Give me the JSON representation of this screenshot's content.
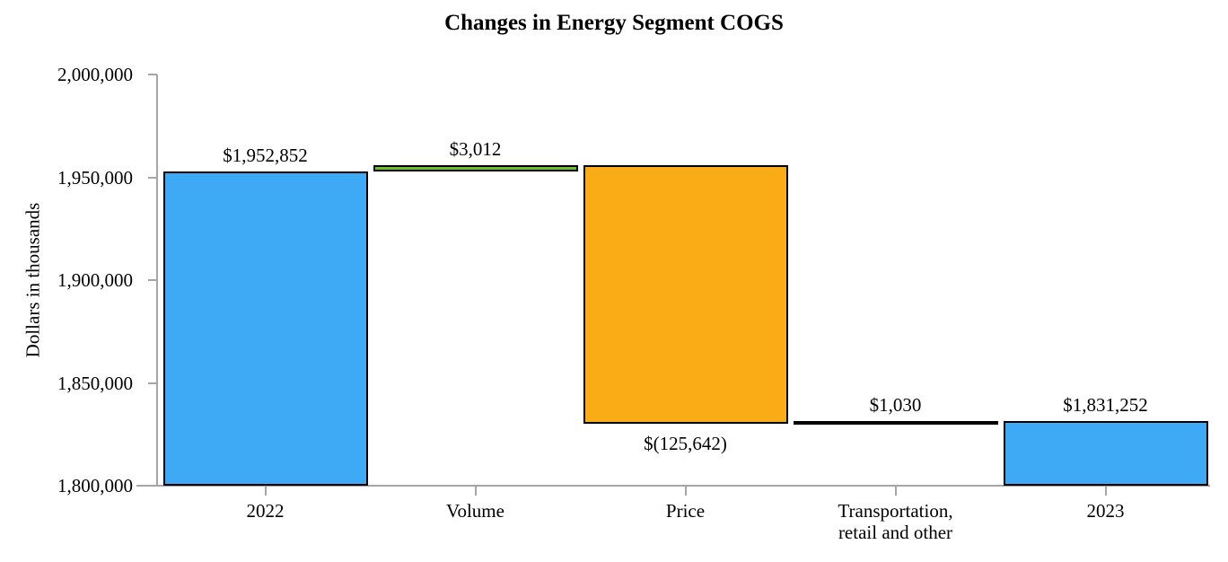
{
  "title": "Changes in Energy Segment COGS",
  "chart_data": {
    "type": "bar",
    "subtype": "waterfall",
    "title": "Changes in Energy Segment COGS",
    "xlabel": "",
    "ylabel": "Dollars in thousands",
    "ylim": [
      1800000,
      2000000
    ],
    "y_tick_interval": 50000,
    "y_tick_labels": [
      "2,000,000",
      "1,950,000",
      "1,900,000",
      "1,850,000",
      "1,800,000"
    ],
    "grid": false,
    "legend": false,
    "categories": [
      "2022",
      "Volume",
      "Price",
      "Transportation, retail and other",
      "2023"
    ],
    "bars": [
      {
        "category": "2022",
        "category_lines": [
          "2022"
        ],
        "kind": "total",
        "value": 1952852,
        "label": "$1,952,852",
        "label_position": "above",
        "color": "#3ea9f5"
      },
      {
        "category": "Volume",
        "category_lines": [
          "Volume"
        ],
        "kind": "delta",
        "value": 3012,
        "label": "$3,012",
        "label_position": "above",
        "color": "#6abf2b"
      },
      {
        "category": "Price",
        "category_lines": [
          "Price"
        ],
        "kind": "delta",
        "value": -125642,
        "label": "$(125,642)",
        "label_position": "below",
        "color": "#f9ac15"
      },
      {
        "category": "Transportation, retail and other",
        "category_lines": [
          "Transportation,",
          "retail and other"
        ],
        "kind": "delta",
        "value": 1030,
        "label": "$1,030",
        "label_position": "above",
        "color": "#000000"
      },
      {
        "category": "2023",
        "category_lines": [
          "2023"
        ],
        "kind": "total",
        "value": 1831252,
        "label": "$1,831,252",
        "label_position": "above",
        "color": "#3ea9f5"
      }
    ],
    "colors": {
      "total_bar": "#3ea9f5",
      "increase_bar": "#6abf2b",
      "decrease_bar": "#f9ac15",
      "small_increase_bar": "#000000",
      "bar_border": "#000000",
      "axis": "#a6a6a6",
      "text": "#000000",
      "background": "#ffffff"
    }
  }
}
